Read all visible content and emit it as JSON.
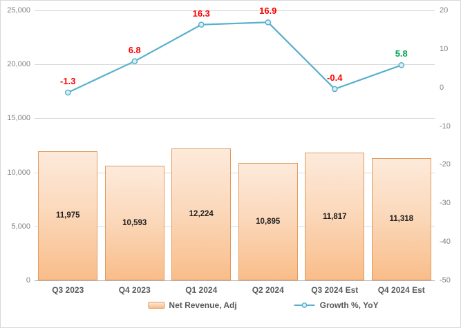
{
  "chart_data": {
    "type": "combo-bar-line",
    "categories": [
      "Q3 2023",
      "Q4 2023",
      "Q1 2024",
      "Q2 2024",
      "Q3 2024 Est",
      "Q4 2024 Est"
    ],
    "series": [
      {
        "name": "Net Revenue, Adj",
        "type": "bar",
        "axis": "left",
        "values": [
          11975,
          10593,
          12224,
          10895,
          11817,
          11318
        ],
        "value_labels": [
          "11,975",
          "10,593",
          "12,224",
          "10,895",
          "11,817",
          "11,318"
        ]
      },
      {
        "name": "Growth %, YoY",
        "type": "line",
        "axis": "right",
        "values": [
          -1.3,
          6.8,
          16.3,
          16.9,
          -0.4,
          5.8
        ],
        "value_labels": [
          "-1.3",
          "6.8",
          "16.3",
          "16.9",
          "-0.4",
          "5.8"
        ],
        "label_colors": [
          "#fe0000",
          "#fe0000",
          "#fe0000",
          "#fe0000",
          "#fe0000",
          "#00a550"
        ]
      }
    ],
    "left_axis": {
      "min": 0,
      "max": 25000,
      "step": 5000,
      "tick_labels": [
        "25,000",
        "20,000",
        "15,000",
        "10,000",
        "5,000",
        "0"
      ]
    },
    "right_axis": {
      "min": -50,
      "max": 20,
      "step": 10,
      "tick_labels": [
        "20",
        "10",
        "0",
        "-10",
        "-20",
        "-30",
        "-40",
        "-50"
      ]
    },
    "grid": true,
    "legend_position": "bottom",
    "title": "",
    "xlabel": "",
    "ylabel": "",
    "colors": {
      "bar_fill_top": "#fdeadb",
      "bar_fill_bottom": "#f9bd8a",
      "bar_border": "#e19a5c",
      "line": "#57b0cd",
      "marker_fill": "#daeef3",
      "grid": "#d9d9d9",
      "axis_text": "#7f7f7f",
      "category_text": "#595959",
      "bar_value_text": "#1f1f1f",
      "negative_label": "#fe0000",
      "positive_est_label": "#00a550",
      "frame_border": "#d3d9de"
    }
  }
}
